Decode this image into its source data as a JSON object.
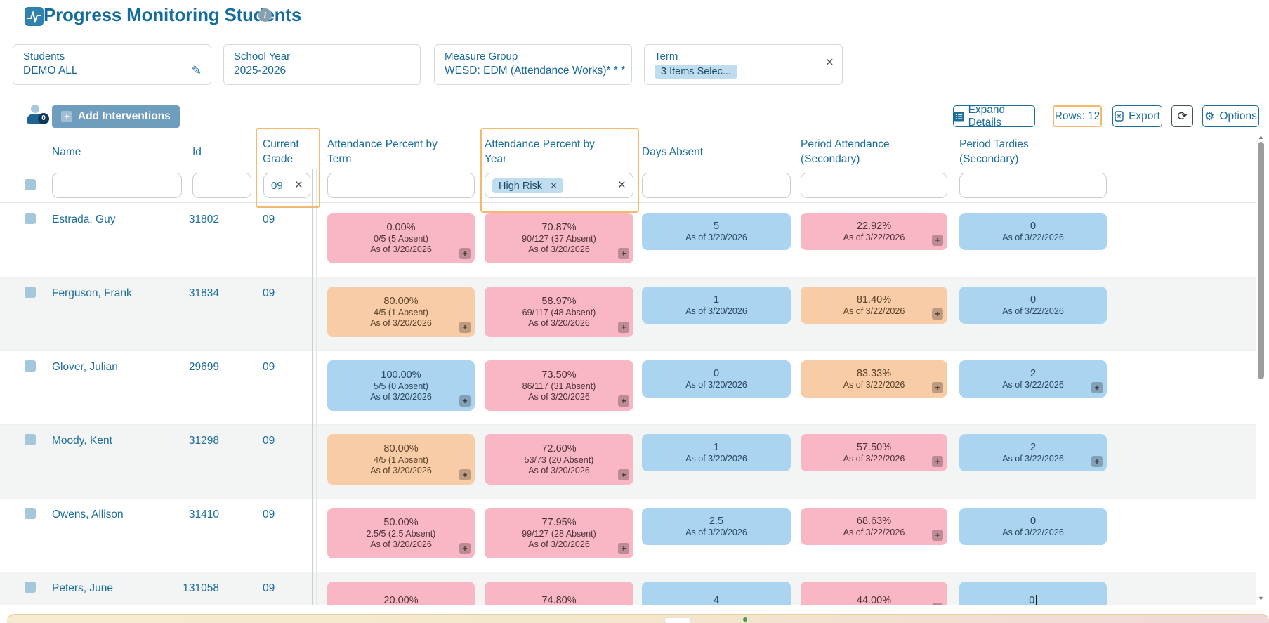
{
  "page": {
    "title": "Progress Monitoring Students"
  },
  "filter_cards": [
    {
      "label": "Students",
      "value": "DEMO ALL"
    },
    {
      "label": "School Year",
      "value": "2025-2026"
    },
    {
      "label": "Measure Group",
      "value": "WESD: EDM (Attendance Works)* * *"
    },
    {
      "label": "Term",
      "selected_chip": "3 Items Selec..."
    }
  ],
  "toolbar": {
    "selected_badge": "0",
    "add_interventions": "Add Interventions",
    "expand_details": "Expand Details",
    "rows": "Rows: 12",
    "export": "Export",
    "options": "Options"
  },
  "table": {
    "columns": [
      {
        "label": "Name"
      },
      {
        "label": "Id"
      },
      {
        "label": "Current Grade"
      },
      {
        "label": "Attendance Percent by Term"
      },
      {
        "label": "Attendance Percent by Year"
      },
      {
        "label": "Days Absent"
      },
      {
        "label": "Period Attendance (Secondary)"
      },
      {
        "label": "Period Tardies (Secondary)"
      }
    ],
    "filter_row": {
      "name": "",
      "id": "",
      "current_grade": "09",
      "term": "",
      "year_chip": "High Risk",
      "days_absent": "",
      "period_attendance": "",
      "period_tardies": ""
    },
    "rows": [
      {
        "name": "Estrada, Guy",
        "id": "31802",
        "grade": "09",
        "cells": [
          {
            "v": "0.00%",
            "sub": [
              "0/5 (5 Absent)",
              "As of 3/20/2026"
            ],
            "risk": "pink",
            "plus": true
          },
          {
            "v": "70.87%",
            "sub": [
              "90/127 (37 Absent)",
              "As of 3/20/2026"
            ],
            "risk": "pink",
            "plus": true
          },
          {
            "v": "5",
            "sub": [
              "As of 3/20/2026"
            ],
            "risk": "blue",
            "plus": false
          },
          {
            "v": "22.92%",
            "sub": [
              "As of 3/22/2026"
            ],
            "risk": "pink",
            "plus": true
          },
          {
            "v": "0",
            "sub": [
              "As of 3/22/2026"
            ],
            "risk": "blue",
            "plus": false
          }
        ]
      },
      {
        "name": "Ferguson, Frank",
        "id": "31834",
        "grade": "09",
        "cells": [
          {
            "v": "80.00%",
            "sub": [
              "4/5 (1 Absent)",
              "As of 3/20/2026"
            ],
            "risk": "orange",
            "plus": true
          },
          {
            "v": "58.97%",
            "sub": [
              "69/117 (48 Absent)",
              "As of 3/20/2026"
            ],
            "risk": "pink",
            "plus": true
          },
          {
            "v": "1",
            "sub": [
              "As of 3/20/2026"
            ],
            "risk": "blue",
            "plus": false
          },
          {
            "v": "81.40%",
            "sub": [
              "As of 3/22/2026"
            ],
            "risk": "orange",
            "plus": true
          },
          {
            "v": "0",
            "sub": [
              "As of 3/22/2026"
            ],
            "risk": "blue",
            "plus": false
          }
        ]
      },
      {
        "name": "Glover, Julian",
        "id": "29699",
        "grade": "09",
        "cells": [
          {
            "v": "100.00%",
            "sub": [
              "5/5 (0 Absent)",
              "As of 3/20/2026"
            ],
            "risk": "blue",
            "plus": true
          },
          {
            "v": "73.50%",
            "sub": [
              "86/117 (31 Absent)",
              "As of 3/20/2026"
            ],
            "risk": "pink",
            "plus": true
          },
          {
            "v": "0",
            "sub": [
              "As of 3/20/2026"
            ],
            "risk": "blue",
            "plus": false
          },
          {
            "v": "83.33%",
            "sub": [
              "As of 3/22/2026"
            ],
            "risk": "orange",
            "plus": true
          },
          {
            "v": "2",
            "sub": [
              "As of 3/22/2026"
            ],
            "risk": "blue",
            "plus": true
          }
        ]
      },
      {
        "name": "Moody, Kent",
        "id": "31298",
        "grade": "09",
        "cells": [
          {
            "v": "80.00%",
            "sub": [
              "4/5 (1 Absent)",
              "As of 3/20/2026"
            ],
            "risk": "orange",
            "plus": true
          },
          {
            "v": "72.60%",
            "sub": [
              "53/73 (20 Absent)",
              "As of 3/20/2026"
            ],
            "risk": "pink",
            "plus": true
          },
          {
            "v": "1",
            "sub": [
              "As of 3/20/2026"
            ],
            "risk": "blue",
            "plus": false
          },
          {
            "v": "57.50%",
            "sub": [
              "As of 3/22/2026"
            ],
            "risk": "pink",
            "plus": true
          },
          {
            "v": "2",
            "sub": [
              "As of 3/22/2026"
            ],
            "risk": "blue",
            "plus": true
          }
        ]
      },
      {
        "name": "Owens, Allison",
        "id": "31410",
        "grade": "09",
        "cells": [
          {
            "v": "50.00%",
            "sub": [
              "2.5/5 (2.5 Absent)",
              "As of 3/20/2026"
            ],
            "risk": "pink",
            "plus": true
          },
          {
            "v": "77.95%",
            "sub": [
              "99/127 (28 Absent)",
              "As of 3/20/2026"
            ],
            "risk": "pink",
            "plus": true
          },
          {
            "v": "2.5",
            "sub": [
              "As of 3/20/2026"
            ],
            "risk": "blue",
            "plus": false
          },
          {
            "v": "68.63%",
            "sub": [
              "As of 3/22/2026"
            ],
            "risk": "pink",
            "plus": true
          },
          {
            "v": "0",
            "sub": [
              "As of 3/22/2026"
            ],
            "risk": "blue",
            "plus": false
          }
        ]
      },
      {
        "name": "Peters, June",
        "id": "131058",
        "grade": "09",
        "cells": [
          {
            "v": "20.00%",
            "sub": [],
            "risk": "pink",
            "plus": false
          },
          {
            "v": "74.80%",
            "sub": [],
            "risk": "pink",
            "plus": false
          },
          {
            "v": "4",
            "sub": [],
            "risk": "blue",
            "plus": false
          },
          {
            "v": "44.00%",
            "sub": [],
            "risk": "pink",
            "plus": true
          },
          {
            "v": "0",
            "sub": [],
            "risk": "blue",
            "plus": false,
            "cursor": true
          }
        ]
      }
    ]
  },
  "icons": {
    "edit": "✎",
    "close": "×",
    "gear": "⚙",
    "refresh": "⟳",
    "info": "i",
    "plus": "+",
    "caret_up": "▲",
    "caret_down": "▼"
  },
  "colors": {
    "accent_blue": "#1b6d9c",
    "risk_pink": "#f9b7c5",
    "risk_blue": "#abd4f1",
    "risk_orange": "#f8cca7",
    "highlight_orange": "#f5b96d",
    "chip_blue": "#bfddee",
    "button_fill": "#6f9dbd"
  }
}
